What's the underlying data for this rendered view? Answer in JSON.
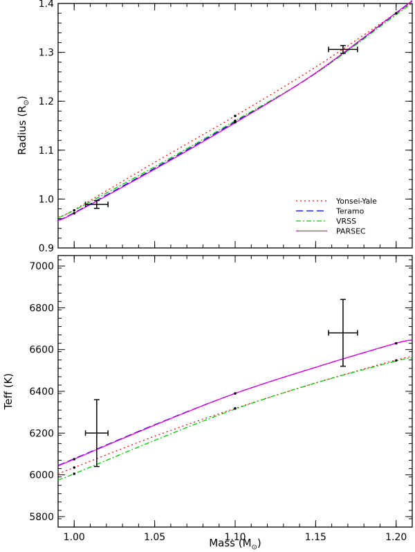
{
  "chart_data": [
    {
      "id": "radius",
      "type": "line",
      "ylabel_text": "Radius (R",
      "ylabel_sub": "⊙",
      "ylabel_close": ")",
      "xlim": [
        0.99,
        1.21
      ],
      "ylim": [
        0.9,
        1.4
      ],
      "xticks": [
        1.0,
        1.05,
        1.1,
        1.15,
        1.2
      ],
      "yticks": [
        0.9,
        1.0,
        1.1,
        1.2,
        1.3,
        1.4
      ],
      "ytick_labels": [
        "0.9",
        "1.0",
        "1.1",
        "1.2",
        "1.3",
        "1.4"
      ],
      "legend": {
        "placement": "bottom-right",
        "entries": [
          "Yonsei-Yale",
          "Teramo",
          "VRSS",
          "PARSEC"
        ]
      },
      "series": [
        {
          "name": "Yonsei-Yale",
          "color": "#ff0000",
          "dash": "2 4",
          "x": [
            0.99,
            1.0,
            1.05,
            1.1,
            1.15,
            1.2,
            1.21
          ],
          "y": [
            0.963,
            0.978,
            1.075,
            1.17,
            1.27,
            1.38,
            1.4
          ]
        },
        {
          "name": "Teramo",
          "color": "#0000cc",
          "dash": "10 5",
          "x": [
            0.99,
            1.0,
            1.05,
            1.1,
            1.15,
            1.2,
            1.21
          ],
          "y": [
            0.957,
            0.972,
            1.063,
            1.158,
            1.257,
            1.38,
            1.405
          ]
        },
        {
          "name": "VRSS",
          "color": "#00cc00",
          "dash": "7 3 2 3",
          "x": [
            0.99,
            1.0,
            1.05,
            1.1,
            1.15,
            1.2,
            1.21
          ],
          "y": [
            0.962,
            0.977,
            1.066,
            1.16,
            1.257,
            1.377,
            1.4
          ]
        },
        {
          "name": "PARSEC",
          "color": "#dd00dd",
          "dash": "",
          "x": [
            0.99,
            1.0,
            1.05,
            1.1,
            1.15,
            1.2,
            1.21
          ],
          "y": [
            0.956,
            0.971,
            1.061,
            1.156,
            1.258,
            1.381,
            1.406
          ]
        }
      ],
      "model_points": {
        "x": [
          1.0,
          1.0,
          1.1,
          1.1,
          1.1,
          1.2
        ],
        "y": [
          0.971,
          0.977,
          1.157,
          1.16,
          1.17,
          1.38
        ]
      },
      "observations": [
        {
          "x": 1.014,
          "y": 0.989,
          "xerr": 0.007,
          "yerr": 0.008
        },
        {
          "x": 1.167,
          "y": 1.306,
          "xerr": 0.009,
          "yerr": 0.008
        }
      ]
    },
    {
      "id": "teff",
      "type": "line",
      "xlabel_text": "Mass (M",
      "xlabel_sub": "⊙",
      "xlabel_close": ")",
      "ylabel_text": "Teff (K)",
      "xlim": [
        0.99,
        1.21
      ],
      "ylim": [
        5750,
        7050
      ],
      "xticks": [
        1.0,
        1.05,
        1.1,
        1.15,
        1.2
      ],
      "xtick_labels": [
        "1.00",
        "1.05",
        "1.10",
        "1.15",
        "1.20"
      ],
      "yticks": [
        5800,
        6000,
        6200,
        6400,
        6600,
        6800,
        7000
      ],
      "ytick_labels": [
        "5800",
        "6000",
        "6200",
        "6400",
        "6600",
        "6800",
        "7000"
      ],
      "series": [
        {
          "name": "Yonsei-Yale",
          "color": "#ff0000",
          "dash": "2 4",
          "x": [
            0.99,
            1.0,
            1.05,
            1.1,
            1.15,
            1.2,
            1.21
          ],
          "y": [
            6005,
            6035,
            6185,
            6318,
            6440,
            6550,
            6565
          ]
        },
        {
          "name": "Teramo",
          "color": "#0000cc",
          "dash": "10 5",
          "x": [
            0.99,
            1.0,
            1.05,
            1.1,
            1.15,
            1.2,
            1.21
          ],
          "y": [
            6045,
            6077,
            6240,
            6390,
            6515,
            6630,
            6645
          ]
        },
        {
          "name": "VRSS",
          "color": "#00cc00",
          "dash": "7 3 2 3",
          "x": [
            0.99,
            1.0,
            1.05,
            1.1,
            1.15,
            1.2,
            1.21
          ],
          "y": [
            5975,
            6005,
            6165,
            6315,
            6440,
            6545,
            6560
          ]
        },
        {
          "name": "PARSEC",
          "color": "#dd00dd",
          "dash": "",
          "x": [
            0.99,
            1.0,
            1.05,
            1.1,
            1.15,
            1.2,
            1.21
          ],
          "y": [
            6043,
            6075,
            6238,
            6390,
            6515,
            6630,
            6645
          ]
        }
      ],
      "model_points": {
        "x": [
          1.0,
          1.0,
          1.0,
          1.1,
          1.1,
          1.2,
          1.2
        ],
        "y": [
          6005,
          6035,
          6075,
          6318,
          6390,
          6548,
          6630
        ]
      },
      "observations": [
        {
          "x": 1.014,
          "y": 6200,
          "xerr": 0.007,
          "yerr": 160
        },
        {
          "x": 1.167,
          "y": 6680,
          "xerr": 0.009,
          "yerr": 160
        }
      ]
    }
  ]
}
